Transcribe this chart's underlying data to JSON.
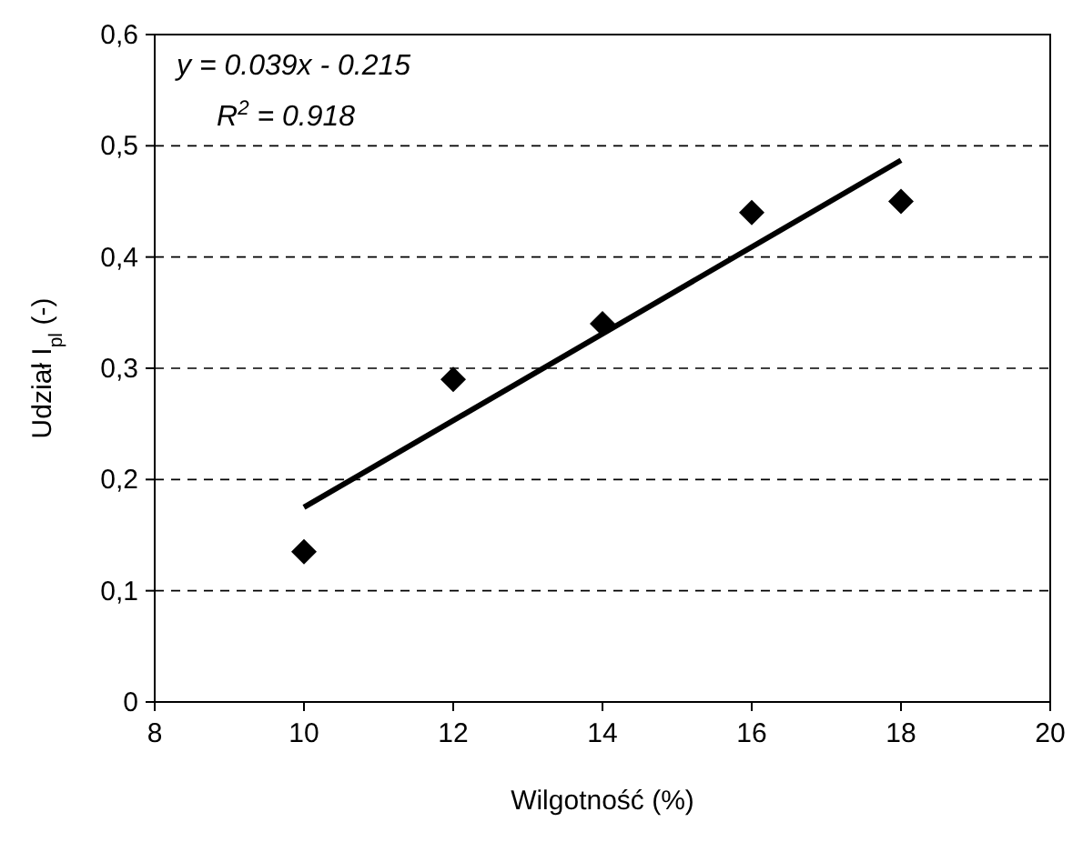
{
  "chart_data": {
    "type": "scatter",
    "xlabel": "Wilgotność (%)",
    "ylabel": "Udział I$_{pl}$ (-)",
    "x": [
      10,
      12,
      14,
      16,
      18
    ],
    "series": [
      {
        "color": "#000000",
        "marker": "diamond",
        "values": [
          0.135,
          0.29,
          0.34,
          0.44,
          0.45
        ]
      },
      {
        "type": "line",
        "color": "#000000",
        "x": [
          10,
          18
        ],
        "values": [
          0.175,
          0.487
        ]
      }
    ],
    "xlim": [
      8,
      20
    ],
    "xticks": [
      8,
      10,
      12,
      14,
      16,
      18,
      20
    ],
    "ylim": [
      0,
      0.6
    ],
    "yticks": [
      {
        "value": 0,
        "label": "0"
      },
      {
        "value": 0.1,
        "label": "0,1"
      },
      {
        "value": 0.2,
        "label": "0,2"
      },
      {
        "value": 0.3,
        "label": "0,3"
      },
      {
        "value": 0.4,
        "label": "0,4"
      },
      {
        "value": 0.5,
        "label": "0,5"
      },
      {
        "value": 0.6,
        "label": "0,6"
      }
    ],
    "grid": "y",
    "annotations": [
      "y = 0.039x - 0.215",
      "R$^{2}$ = 0.918"
    ]
  }
}
